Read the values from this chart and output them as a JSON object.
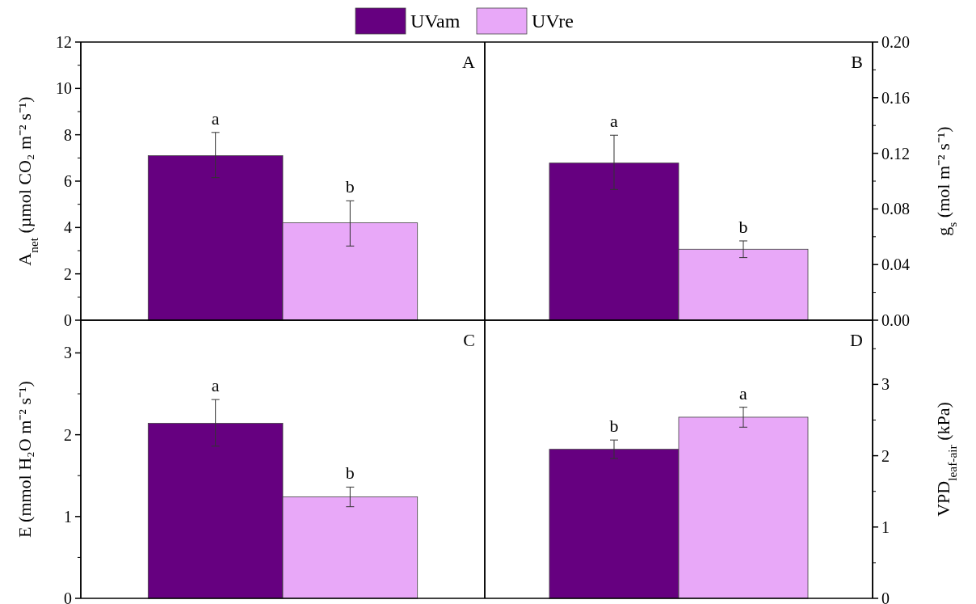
{
  "chart_data": [
    {
      "type": "bar",
      "categories": [
        null
      ],
      "ylabel": "A$_{net}$ (µmol CO₂ m⁻² s⁻¹)",
      "ylim": [
        0,
        12
      ],
      "yticks": [
        0,
        2,
        4,
        6,
        8,
        10,
        12
      ],
      "legend": "top",
      "annotations": [
        "A",
        {
          "text": "a",
          "y": 8.1
        },
        {
          "text": "b",
          "y": 5.15
        }
      ],
      "series": [
        {
          "name": "UVam",
          "color": "#660080",
          "values": [
            7.1
          ],
          "errors": [
            [
              6.15,
              8.1
            ]
          ]
        },
        {
          "name": "UVre",
          "color": "#e8a8f8",
          "values": [
            4.2
          ],
          "errors": [
            [
              3.2,
              5.15
            ]
          ]
        }
      ]
    },
    {
      "type": "bar",
      "categories": [
        null
      ],
      "ylabel": "g$_{s}$ (mol m⁻² s⁻¹)",
      "ylim": [
        0,
        0.2
      ],
      "yticks": [
        {
          "value": 0,
          "label": "0.00"
        },
        {
          "value": 0.04,
          "label": "0.04"
        },
        {
          "value": 0.08,
          "label": "0.08"
        },
        {
          "value": 0.12,
          "label": "0.12"
        },
        {
          "value": 0.16,
          "label": "0.16"
        },
        {
          "value": 0.2,
          "label": "0.20"
        }
      ],
      "annotations": [
        "B",
        {
          "text": "a",
          "y": 0.133
        },
        {
          "text": "b",
          "y": 0.057
        }
      ],
      "series": [
        {
          "color": "#660080",
          "values": [
            0.113
          ],
          "errors": [
            [
              0.094,
              0.133
            ]
          ]
        },
        {
          "color": "#e8a8f8",
          "values": [
            0.051
          ],
          "errors": [
            [
              0.045,
              0.057
            ]
          ]
        }
      ]
    },
    {
      "type": "bar",
      "categories": [
        null
      ],
      "ylabel": "E (mmol H₂O m⁻² s⁻¹)",
      "ylim": [
        0,
        3.4
      ],
      "yticks": [
        0,
        1,
        2,
        3
      ],
      "annotations": [
        "C",
        {
          "text": "a",
          "y": 2.43
        },
        {
          "text": "b",
          "y": 1.36
        }
      ],
      "series": [
        {
          "color": "#660080",
          "values": [
            2.14
          ],
          "errors": [
            [
              1.86,
              2.43
            ]
          ]
        },
        {
          "color": "#e8a8f8",
          "values": [
            1.24
          ],
          "errors": [
            [
              1.12,
              1.36
            ]
          ]
        }
      ]
    },
    {
      "type": "bar",
      "categories": [
        null
      ],
      "ylabel": "VPD$_{leaf-air}$ (kPa)",
      "ylim": [
        0,
        3.9
      ],
      "yticks": [
        0,
        1,
        2,
        3
      ],
      "annotations": [
        "D",
        {
          "text": "b",
          "y": 2.22
        },
        {
          "text": "a",
          "y": 2.68
        }
      ],
      "series": [
        {
          "color": "#660080",
          "values": [
            2.09
          ],
          "errors": [
            [
              1.96,
              2.22
            ]
          ]
        },
        {
          "color": "#e8a8f8",
          "values": [
            2.54
          ],
          "errors": [
            [
              2.4,
              2.68
            ]
          ]
        }
      ]
    }
  ]
}
